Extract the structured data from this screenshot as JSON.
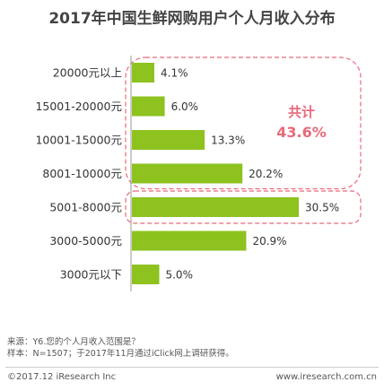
{
  "chart_data": {
    "type": "bar",
    "orientation": "horizontal",
    "title": "2017年中国生鲜网购用户个人月收入分布",
    "categories": [
      "20000元以上",
      "15001-20000元",
      "10001-15000元",
      "8001-10000元",
      "5001-8000元",
      "3000-5000元",
      "3000元以下"
    ],
    "values": [
      4.1,
      6.0,
      13.3,
      20.2,
      30.5,
      20.9,
      5.0
    ],
    "value_labels": [
      "4.1%",
      "6.0%",
      "13.3%",
      "20.2%",
      "30.5%",
      "20.9%",
      "5.0%"
    ],
    "unit": "%",
    "bar_color": "#8dc21f",
    "annotation": {
      "label": "共计",
      "value": "43.6%",
      "color": "#e8697a",
      "group": [
        "20000元以上",
        "15001-20000元",
        "10001-15000元",
        "8001-10000元"
      ]
    },
    "highlight": "5001-8000元",
    "highlight_color": "#e8697a",
    "grid": false,
    "legend": "none"
  },
  "footer": {
    "source": "来源：Y6.您的个人月收入范围是？",
    "sample": "样本：N=1507；于2017年11月通过iClick网上调研获得。",
    "copyright": "©2017.12 iResearch Inc",
    "website": "www.iresearch.com.cn"
  }
}
